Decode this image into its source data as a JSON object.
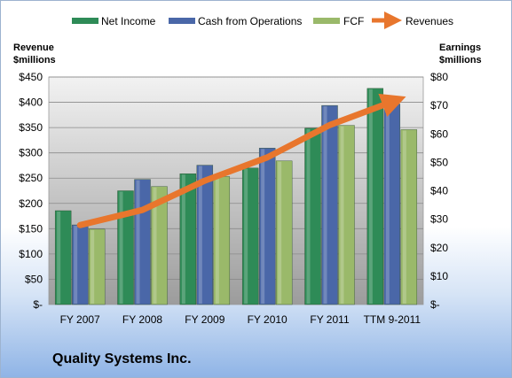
{
  "chart_data": {
    "type": "bar",
    "title": "Quality Systems Inc.",
    "left_axis_title": [
      "Revenue",
      "$millions"
    ],
    "right_axis_title": [
      "Earnings",
      "$millions"
    ],
    "categories": [
      "FY 2007",
      "FY 2008",
      "FY 2009",
      "FY 2010",
      "FY 2011",
      "TTM 9-2011"
    ],
    "left_ticks": [
      "$-",
      "$50",
      "$100",
      "$150",
      "$200",
      "$250",
      "$300",
      "$350",
      "$400",
      "$450"
    ],
    "right_ticks": [
      "$-",
      "$10",
      "$20",
      "$30",
      "$40",
      "$50",
      "$60",
      "$70",
      "$80"
    ],
    "ylim_left": [
      0,
      450
    ],
    "ylim_right": [
      0,
      80
    ],
    "grid": true,
    "legend_position": "top",
    "series": [
      {
        "name": "Net Income",
        "kind": "bar",
        "axis": "right",
        "color": "#2e8b57",
        "values": [
          33,
          40,
          46,
          48,
          62,
          76
        ]
      },
      {
        "name": "Cash from Operations",
        "kind": "bar",
        "axis": "right",
        "color": "#4a67a8",
        "values": [
          28,
          44,
          49,
          55,
          70,
          70.5
        ]
      },
      {
        "name": "FCF",
        "kind": "bar",
        "axis": "right",
        "color": "#9ab96a",
        "values": [
          26.5,
          41.5,
          45,
          50.5,
          63,
          61.5
        ]
      },
      {
        "name": "Revenues",
        "kind": "line",
        "axis": "left",
        "color": "#e8762d",
        "values": [
          157,
          187,
          245,
          291,
          355,
          401
        ]
      }
    ]
  }
}
